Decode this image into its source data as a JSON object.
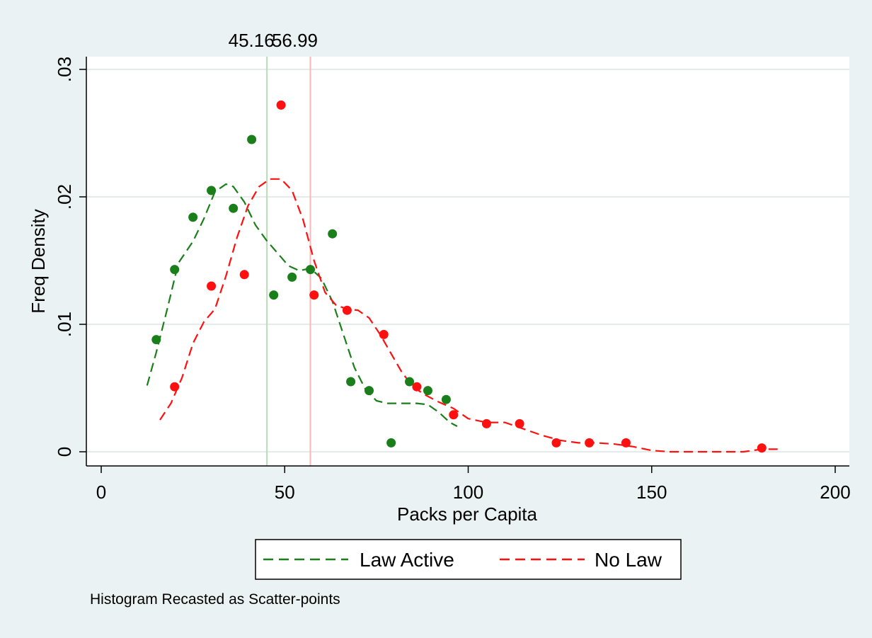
{
  "chart_data": {
    "type": "scatter",
    "title": "",
    "xlabel": "Packs per Capita",
    "ylabel": "Freq Density",
    "xlim": [
      0,
      200
    ],
    "ylim": [
      0,
      0.03
    ],
    "x_ticks": [
      0,
      50,
      100,
      150,
      200
    ],
    "x_tick_labels": [
      "0",
      "50",
      "100",
      "150",
      "200"
    ],
    "y_ticks": [
      0,
      0.01,
      0.02,
      0.03
    ],
    "y_tick_labels": [
      "0",
      ".01",
      ".02",
      ".03"
    ],
    "grid": "horizontal",
    "legend_position": "bottom",
    "reference_lines": [
      {
        "x": 45.16,
        "label": "45.16",
        "color": "#b9d9b9"
      },
      {
        "x": 56.99,
        "label": "56.99",
        "color": "#f6b8b8"
      }
    ],
    "series": [
      {
        "name": "Law Active",
        "color": "#1a7f1a",
        "points": [
          [
            15,
            0.0088
          ],
          [
            20,
            0.0143
          ],
          [
            25,
            0.0184
          ],
          [
            30,
            0.0205
          ],
          [
            36,
            0.0191
          ],
          [
            41,
            0.0245
          ],
          [
            47,
            0.0123
          ],
          [
            52,
            0.0137
          ],
          [
            57,
            0.0143
          ],
          [
            63,
            0.0171
          ],
          [
            68,
            0.0055
          ],
          [
            73,
            0.0048
          ],
          [
            79,
            0.0007
          ],
          [
            84,
            0.0055
          ],
          [
            89,
            0.0048
          ],
          [
            94,
            0.0041
          ]
        ],
        "density_curve": [
          [
            12.5,
            0.0052
          ],
          [
            15,
            0.0078
          ],
          [
            18,
            0.0112
          ],
          [
            21,
            0.0148
          ],
          [
            25,
            0.0165
          ],
          [
            28,
            0.0183
          ],
          [
            31,
            0.0204
          ],
          [
            34,
            0.021
          ],
          [
            36,
            0.0208
          ],
          [
            39,
            0.0196
          ],
          [
            42,
            0.0178
          ],
          [
            45,
            0.0166
          ],
          [
            48,
            0.0156
          ],
          [
            51,
            0.0146
          ],
          [
            54,
            0.0142
          ],
          [
            57,
            0.0144
          ],
          [
            60,
            0.0136
          ],
          [
            63,
            0.0118
          ],
          [
            66,
            0.0092
          ],
          [
            69,
            0.0066
          ],
          [
            72,
            0.0049
          ],
          [
            75,
            0.004
          ],
          [
            78,
            0.0038
          ],
          [
            82,
            0.0038
          ],
          [
            86,
            0.0038
          ],
          [
            89,
            0.0037
          ],
          [
            92,
            0.0031
          ],
          [
            95,
            0.0023
          ],
          [
            97,
            0.002
          ]
        ]
      },
      {
        "name": "No Law",
        "color": "#ff1010",
        "points": [
          [
            20,
            0.0051
          ],
          [
            30,
            0.013
          ],
          [
            39,
            0.0139
          ],
          [
            49,
            0.0272
          ],
          [
            58,
            0.0123
          ],
          [
            67,
            0.0111
          ],
          [
            77,
            0.0092
          ],
          [
            86,
            0.0051
          ],
          [
            96,
            0.0029
          ],
          [
            105,
            0.0022
          ],
          [
            114,
            0.0022
          ],
          [
            124,
            0.0007
          ],
          [
            133,
            0.0007
          ],
          [
            143,
            0.0007
          ],
          [
            180,
            0.0003
          ]
        ],
        "density_curve": [
          [
            16,
            0.0025
          ],
          [
            19,
            0.0038
          ],
          [
            22,
            0.0058
          ],
          [
            25,
            0.0085
          ],
          [
            28,
            0.0102
          ],
          [
            31,
            0.0112
          ],
          [
            34,
            0.0138
          ],
          [
            37,
            0.0168
          ],
          [
            40,
            0.0193
          ],
          [
            43,
            0.0208
          ],
          [
            46,
            0.0214
          ],
          [
            49,
            0.0214
          ],
          [
            52,
            0.0205
          ],
          [
            55,
            0.0182
          ],
          [
            58,
            0.015
          ],
          [
            61,
            0.0125
          ],
          [
            64,
            0.0115
          ],
          [
            67,
            0.0112
          ],
          [
            70,
            0.0111
          ],
          [
            73,
            0.0105
          ],
          [
            76,
            0.0092
          ],
          [
            79,
            0.0077
          ],
          [
            82,
            0.0062
          ],
          [
            85,
            0.0051
          ],
          [
            88,
            0.0045
          ],
          [
            92,
            0.0039
          ],
          [
            96,
            0.0034
          ],
          [
            100,
            0.0026
          ],
          [
            105,
            0.0023
          ],
          [
            110,
            0.0023
          ],
          [
            115,
            0.0018
          ],
          [
            120,
            0.0013
          ],
          [
            125,
            0.0009
          ],
          [
            130,
            0.0007
          ],
          [
            135,
            0.0007
          ],
          [
            140,
            0.0006
          ],
          [
            145,
            0.0004
          ],
          [
            150,
            0.0001
          ],
          [
            155,
            0.0
          ],
          [
            165,
            0.0
          ],
          [
            175,
            0.0
          ],
          [
            180,
            0.0002
          ],
          [
            185,
            0.0002
          ]
        ]
      }
    ],
    "legend": [
      {
        "label": "Law Active",
        "color": "#1a7f1a"
      },
      {
        "label": "No Law",
        "color": "#ff1010"
      }
    ]
  },
  "note": "Histogram Recasted as Scatter-points"
}
